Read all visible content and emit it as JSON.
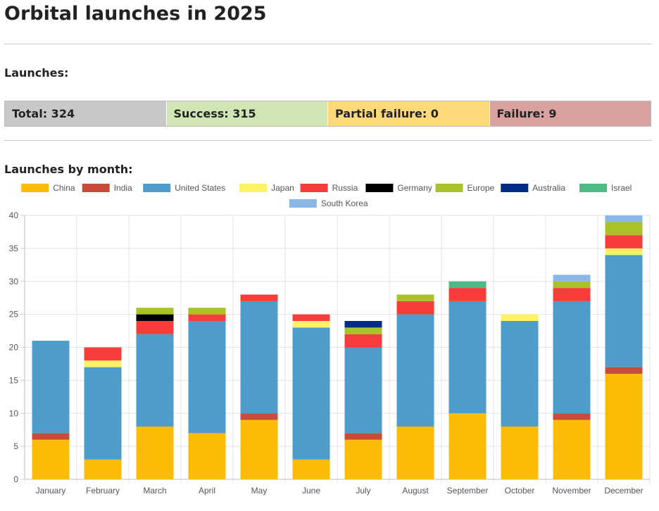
{
  "page": {
    "title": "Orbital launches in 2025",
    "launches_heading": "Launches:",
    "by_month_heading": "Launches by month:"
  },
  "stats": [
    {
      "key": "total",
      "label": "Total: 324",
      "color": "#c8c8c8"
    },
    {
      "key": "success",
      "label": "Success: 315",
      "color": "#cfe6b4"
    },
    {
      "key": "partial",
      "label": "Partial failure: 0",
      "color": "#fed97a"
    },
    {
      "key": "failure",
      "label": "Failure: 9",
      "color": "#d9a0a0"
    }
  ],
  "chart_data": {
    "type": "bar",
    "stacked": true,
    "title": "Launches by month:",
    "xlabel": "",
    "ylabel": "",
    "ylim": [
      0,
      40
    ],
    "yticks": [
      "0",
      "5",
      "10",
      "15",
      "20",
      "25",
      "30",
      "35",
      "40"
    ],
    "grid": true,
    "legend_position": "top",
    "categories": [
      "January",
      "February",
      "March",
      "April",
      "May",
      "June",
      "July",
      "August",
      "September",
      "October",
      "November",
      "December"
    ],
    "series": [
      {
        "name": "China",
        "color": "#fbbc08",
        "values": [
          6,
          3,
          8,
          7,
          9,
          3,
          6,
          8,
          10,
          8,
          9,
          16
        ]
      },
      {
        "name": "India",
        "color": "#c84c3a",
        "values": [
          1,
          0,
          0,
          0,
          1,
          0,
          1,
          0,
          0,
          0,
          1,
          1
        ]
      },
      {
        "name": "United States",
        "color": "#4d9cc9",
        "values": [
          14,
          14,
          14,
          17,
          17,
          20,
          13,
          17,
          17,
          16,
          17,
          17
        ]
      },
      {
        "name": "Japan",
        "color": "#fdf264",
        "values": [
          0,
          1,
          0,
          0,
          0,
          1,
          0,
          0,
          0,
          1,
          0,
          1
        ]
      },
      {
        "name": "Russia",
        "color": "#f73c3c",
        "values": [
          0,
          2,
          2,
          1,
          1,
          1,
          2,
          2,
          2,
          0,
          2,
          2
        ]
      },
      {
        "name": "Germany",
        "color": "#000000",
        "values": [
          0,
          0,
          1,
          0,
          0,
          0,
          0,
          0,
          0,
          0,
          0,
          0
        ]
      },
      {
        "name": "Europe",
        "color": "#a9c22a",
        "values": [
          0,
          0,
          1,
          1,
          0,
          0,
          1,
          1,
          0,
          0,
          1,
          2
        ]
      },
      {
        "name": "Australia",
        "color": "#002b87",
        "values": [
          0,
          0,
          0,
          0,
          0,
          0,
          1,
          0,
          0,
          0,
          0,
          0
        ]
      },
      {
        "name": "Israel",
        "color": "#4cbb84",
        "values": [
          0,
          0,
          0,
          0,
          0,
          0,
          0,
          0,
          1,
          0,
          0,
          0
        ]
      },
      {
        "name": "South Korea",
        "color": "#8bb7e6",
        "values": [
          0,
          0,
          0,
          0,
          0,
          0,
          0,
          0,
          0,
          0,
          1,
          1
        ]
      }
    ]
  }
}
